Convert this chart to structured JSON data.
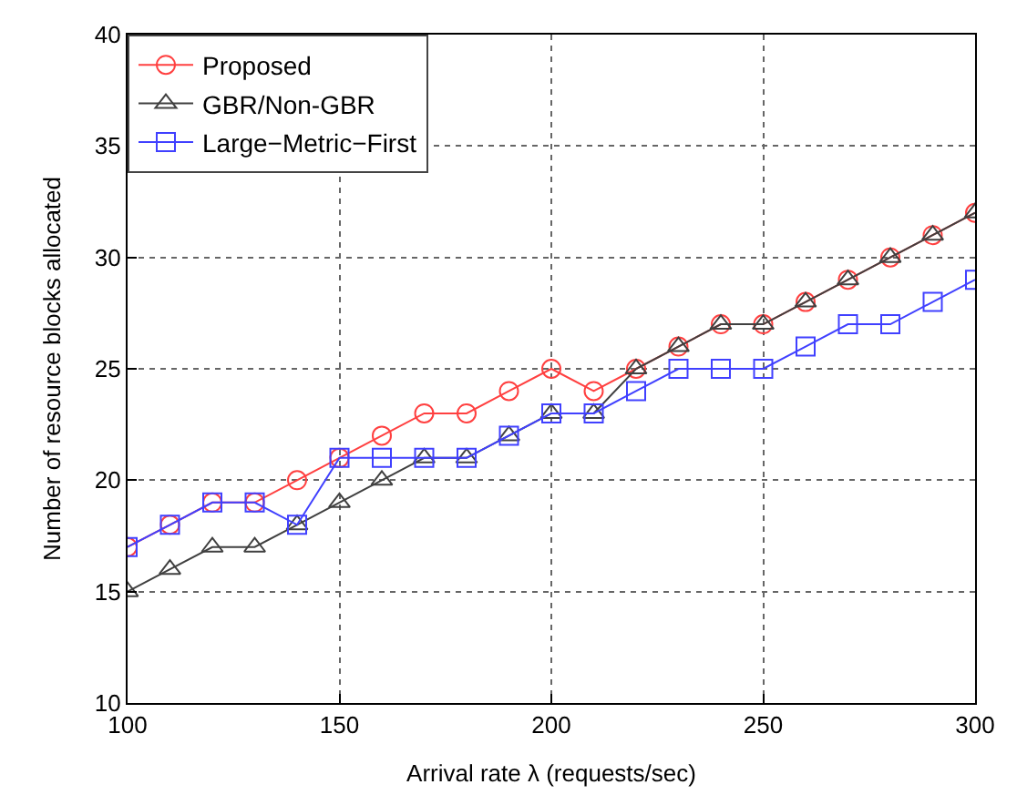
{
  "chart_data": {
    "type": "line",
    "xlabel": "Arrival rate λ (requests/sec)",
    "ylabel": "Number of resource blocks allocated",
    "x": [
      100,
      110,
      120,
      130,
      140,
      150,
      160,
      170,
      180,
      190,
      200,
      210,
      220,
      230,
      240,
      250,
      260,
      270,
      280,
      290,
      300
    ],
    "series": [
      {
        "name": "Proposed",
        "color": "#ff4040",
        "marker": "circle",
        "values": [
          17,
          18,
          19,
          19,
          20,
          21,
          22,
          23,
          23,
          24,
          25,
          24,
          25,
          26,
          27,
          27,
          28,
          29,
          30,
          31,
          32
        ]
      },
      {
        "name": "GBR/Non-GBR",
        "color": "#404040",
        "marker": "triangle",
        "values": [
          15,
          16,
          17,
          17,
          18,
          19,
          20,
          21,
          21,
          22,
          23,
          23,
          25,
          26,
          27,
          27,
          28,
          29,
          30,
          31,
          32
        ]
      },
      {
        "name": "Large−Metric−First",
        "color": "#4040ff",
        "marker": "square",
        "values": [
          17,
          18,
          19,
          19,
          18,
          21,
          21,
          21,
          21,
          22,
          23,
          23,
          24,
          25,
          25,
          25,
          26,
          27,
          27,
          28,
          29
        ]
      }
    ],
    "xlim": [
      100,
      300
    ],
    "xticks": [
      100,
      150,
      200,
      250,
      300
    ],
    "ylim": [
      10,
      40
    ],
    "yticks": [
      10,
      15,
      20,
      25,
      30,
      35,
      40
    ],
    "grid": true,
    "legend": "top left",
    "line_style": "solid"
  }
}
